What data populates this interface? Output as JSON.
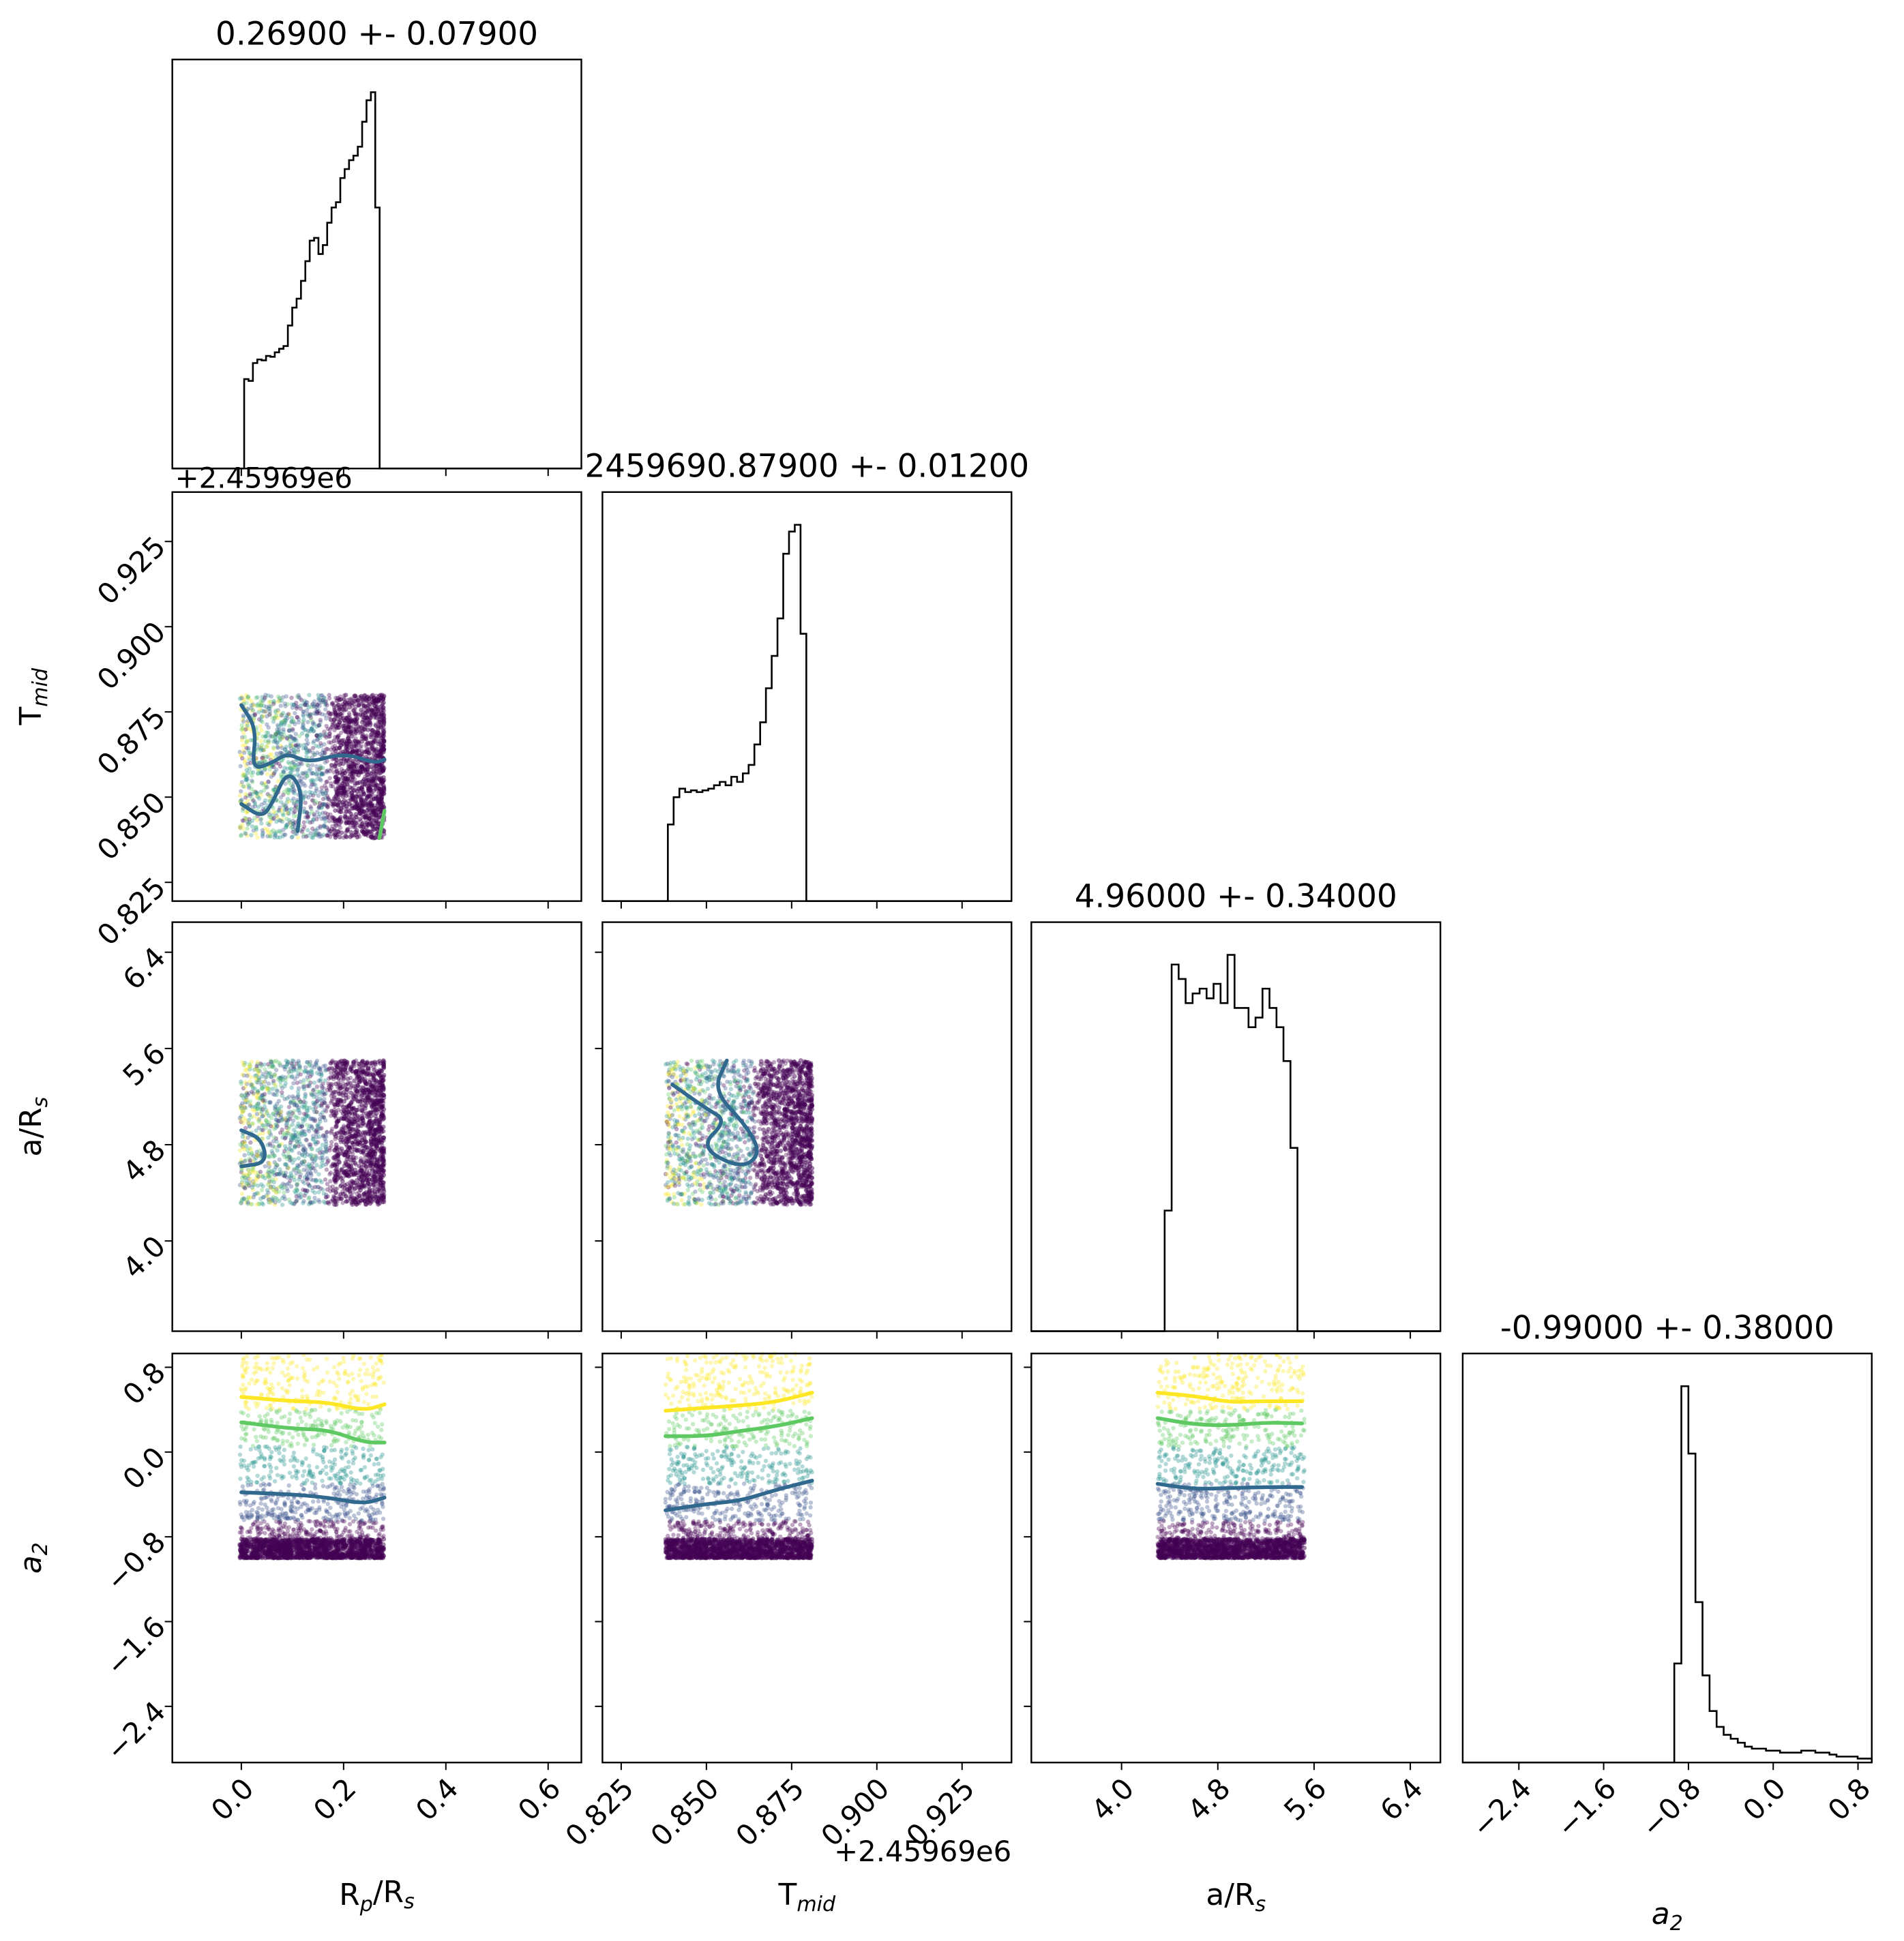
{
  "chart_data": {
    "type": "corner",
    "params": [
      {
        "key": "rp",
        "label_main": "R",
        "label_sub": "p",
        "label_tail": "/R",
        "label_sub2": "s",
        "xlim": [
          -0.135,
          0.665
        ],
        "ticks": [
          0.0,
          0.2,
          0.4,
          0.6
        ],
        "tick_labels": [
          "0.0",
          "0.2",
          "0.4",
          "0.6"
        ],
        "ylim": null,
        "offset_text": ""
      },
      {
        "key": "tmid",
        "label_main": "T",
        "label_sub": "mid",
        "label_tail": "",
        "label_sub2": "",
        "xlim": [
          0.8195,
          0.9395
        ],
        "ylim": [
          0.8195,
          0.9395
        ],
        "ticks": [
          0.825,
          0.85,
          0.875,
          0.9,
          0.925
        ],
        "tick_labels": [
          "0.825",
          "0.850",
          "0.875",
          "0.900",
          "0.925"
        ],
        "offset_text": "+2.45969e6"
      },
      {
        "key": "ars",
        "label_main": "a/R",
        "label_sub": "s",
        "label_tail": "",
        "label_sub2": "",
        "xlim": [
          3.25,
          6.65
        ],
        "ylim": [
          3.25,
          6.65
        ],
        "ticks": [
          4.0,
          4.8,
          5.6,
          6.4
        ],
        "tick_labels": [
          "4.0",
          "4.8",
          "5.6",
          "6.4"
        ],
        "offset_text": ""
      },
      {
        "key": "a2",
        "label_main": "a",
        "label_sub": "2",
        "label_tail": "",
        "label_sub2": "",
        "italic": true,
        "xlim": [
          -2.93,
          0.93
        ],
        "ylim": [
          -2.93,
          0.93
        ],
        "ticks": [
          -2.4,
          -1.6,
          -0.8,
          0.0,
          0.8
        ],
        "tick_labels": [
          "−2.4",
          "−1.6",
          "−0.8",
          "0.0",
          "0.8"
        ],
        "offset_text": ""
      }
    ],
    "titles": [
      "0.26900 +- 0.07900",
      "2459690.87900 +- 0.01200",
      "4.96000 +- 0.34000",
      "-0.99000 +- 0.38000"
    ],
    "top_offset_text": "+2.45969e6",
    "histograms": [
      {
        "edges": [
          -0.003,
          0.279
        ],
        "counts": [
          0,
          1,
          0.98,
          1.18,
          1.22,
          1.21,
          1.26,
          1.25,
          1.3,
          1.34,
          1.37,
          1.6,
          1.8,
          1.9,
          2.1,
          2.32,
          2.55,
          2.58,
          2.4,
          2.5,
          2.75,
          2.92,
          2.98,
          3.25,
          3.35,
          3.45,
          3.5,
          3.6,
          3.88,
          4.12,
          4.21,
          2.92,
          0
        ],
        "peak_norm": 4.21
      },
      {
        "edges": [
          0.837,
          0.881
        ],
        "counts": [
          0,
          4.5,
          6.1,
          6.6,
          6.4,
          6.5,
          6.4,
          6.5,
          6.6,
          6.8,
          7.0,
          6.8,
          7.3,
          7.0,
          7.5,
          8.0,
          9.2,
          10.5,
          12.5,
          14.4,
          16.6,
          20.4,
          21.7,
          22.1,
          15.7,
          0
        ],
        "peak_norm": 22.1
      },
      {
        "edges": [
          4.3,
          5.52
        ],
        "counts": [
          0,
          12.5,
          38,
          36.5,
          34,
          35,
          35.5,
          34.5,
          36,
          34,
          39,
          33.5,
          33.5,
          31.5,
          32.5,
          35.5,
          33.5,
          31.5,
          28,
          19,
          0
        ],
        "peak_norm": 39
      },
      {
        "edges": [
          -2.93,
          0.93
        ],
        "counts": [
          0,
          0,
          0,
          0,
          0,
          0,
          0,
          0,
          0,
          0,
          0,
          0,
          0,
          0,
          0,
          0,
          0,
          0,
          0,
          0,
          0,
          0,
          0,
          0,
          0,
          0,
          0,
          0,
          0,
          0,
          5,
          19,
          15.6,
          8.1,
          4.4,
          2.6,
          1.8,
          1.4,
          1.2,
          1.0,
          0.8,
          0.7,
          0.7,
          0.6,
          0.6,
          0.5,
          0.5,
          0.5,
          0.6,
          0.6,
          0.5,
          0.5,
          0.4,
          0.3,
          0.3,
          0.3,
          0.2,
          0.2
        ],
        "peak_norm": 19
      }
    ],
    "scatter_boxes": [
      {
        "row": 1,
        "col": 0,
        "x": [
          -0.003,
          0.279
        ],
        "y": [
          0.838,
          0.88
        ]
      },
      {
        "row": 2,
        "col": 0,
        "x": [
          -0.003,
          0.279
        ],
        "y": [
          4.3,
          5.5
        ]
      },
      {
        "row": 2,
        "col": 1,
        "x": [
          0.838,
          0.881
        ],
        "y": [
          4.3,
          5.5
        ]
      },
      {
        "row": 3,
        "col": 0,
        "x": [
          -0.003,
          0.279
        ],
        "y": [
          -1.0,
          0.93
        ]
      },
      {
        "row": 3,
        "col": 1,
        "x": [
          0.838,
          0.881
        ],
        "y": [
          -1.0,
          0.93
        ]
      },
      {
        "row": 3,
        "col": 2,
        "x": [
          4.3,
          5.52
        ],
        "y": [
          -1.0,
          0.93
        ]
      }
    ],
    "contours": [
      {
        "row": 3,
        "col": 0,
        "color": "#fde725",
        "points": [
          [
            0.0,
            0.52
          ],
          [
            0.1,
            0.48
          ],
          [
            0.17,
            0.47
          ],
          [
            0.24,
            0.39
          ],
          [
            0.28,
            0.45
          ]
        ]
      },
      {
        "row": 3,
        "col": 0,
        "color": "#5ec962",
        "points": [
          [
            0.0,
            0.28
          ],
          [
            0.1,
            0.22
          ],
          [
            0.17,
            0.21
          ],
          [
            0.24,
            0.09
          ],
          [
            0.28,
            0.09
          ]
        ]
      },
      {
        "row": 3,
        "col": 0,
        "color": "#31688e",
        "points": [
          [
            0.0,
            -0.38
          ],
          [
            0.1,
            -0.4
          ],
          [
            0.17,
            -0.43
          ],
          [
            0.24,
            -0.49
          ],
          [
            0.28,
            -0.43
          ]
        ]
      },
      {
        "row": 3,
        "col": 1,
        "color": "#fde725",
        "points": [
          [
            0.838,
            0.39
          ],
          [
            0.86,
            0.44
          ],
          [
            0.87,
            0.47
          ],
          [
            0.881,
            0.56
          ]
        ]
      },
      {
        "row": 3,
        "col": 1,
        "color": "#5ec962",
        "points": [
          [
            0.838,
            0.15
          ],
          [
            0.85,
            0.15
          ],
          [
            0.86,
            0.2
          ],
          [
            0.87,
            0.24
          ],
          [
            0.881,
            0.32
          ]
        ]
      },
      {
        "row": 3,
        "col": 1,
        "color": "#31688e",
        "points": [
          [
            0.838,
            -0.55
          ],
          [
            0.85,
            -0.49
          ],
          [
            0.86,
            -0.46
          ],
          [
            0.87,
            -0.36
          ],
          [
            0.881,
            -0.27
          ]
        ]
      },
      {
        "row": 3,
        "col": 2,
        "color": "#fde725",
        "points": [
          [
            4.3,
            0.56
          ],
          [
            4.6,
            0.53
          ],
          [
            4.9,
            0.47
          ],
          [
            5.1,
            0.48
          ],
          [
            5.5,
            0.48
          ]
        ]
      },
      {
        "row": 3,
        "col": 2,
        "color": "#5ec962",
        "points": [
          [
            4.3,
            0.32
          ],
          [
            4.6,
            0.26
          ],
          [
            4.9,
            0.25
          ],
          [
            5.2,
            0.28
          ],
          [
            5.5,
            0.27
          ]
        ]
      },
      {
        "row": 3,
        "col": 2,
        "color": "#31688e",
        "points": [
          [
            4.3,
            -0.3
          ],
          [
            4.6,
            -0.35
          ],
          [
            4.9,
            -0.34
          ],
          [
            5.2,
            -0.33
          ],
          [
            5.5,
            -0.33
          ]
        ]
      },
      {
        "row": 1,
        "col": 0,
        "color": "#31688e",
        "points": [
          [
            0.0,
            0.877
          ],
          [
            0.03,
            0.87
          ],
          [
            0.02,
            0.858
          ],
          [
            0.06,
            0.86
          ],
          [
            0.09,
            0.863
          ],
          [
            0.13,
            0.86
          ],
          [
            0.2,
            0.863
          ],
          [
            0.26,
            0.86
          ],
          [
            0.28,
            0.861
          ]
        ]
      },
      {
        "row": 1,
        "col": 0,
        "color": "#31688e",
        "points": [
          [
            0.0,
            0.848
          ],
          [
            0.04,
            0.844
          ],
          [
            0.06,
            0.848
          ],
          [
            0.09,
            0.858
          ],
          [
            0.12,
            0.852
          ],
          [
            0.11,
            0.84
          ]
        ]
      },
      {
        "row": 1,
        "col": 0,
        "color": "#5ec962",
        "points": [
          [
            0.27,
            0.838
          ],
          [
            0.28,
            0.846
          ]
        ]
      },
      {
        "row": 2,
        "col": 0,
        "color": "#31688e",
        "points": [
          [
            0.0,
            4.62
          ],
          [
            0.05,
            4.65
          ],
          [
            0.04,
            4.85
          ],
          [
            0.0,
            4.92
          ]
        ]
      },
      {
        "row": 2,
        "col": 1,
        "color": "#31688e",
        "points": [
          [
            0.84,
            5.3
          ],
          [
            0.85,
            5.1
          ],
          [
            0.856,
            5.0
          ],
          [
            0.848,
            4.78
          ],
          [
            0.86,
            4.6
          ],
          [
            0.866,
            4.72
          ],
          [
            0.862,
            4.95
          ],
          [
            0.852,
            5.25
          ],
          [
            0.856,
            5.5
          ]
        ]
      }
    ]
  }
}
